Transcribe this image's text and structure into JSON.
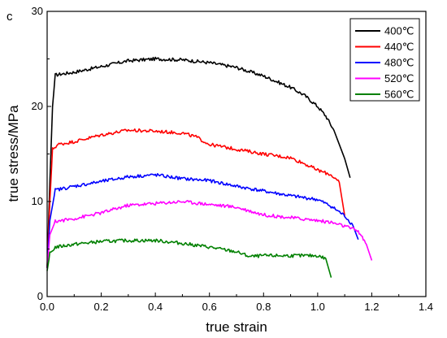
{
  "chart_data": {
    "type": "line",
    "panel_label": "c",
    "xlabel": "true strain",
    "ylabel": "true stress/MPa",
    "xlim": [
      0.0,
      1.4
    ],
    "ylim": [
      0,
      30
    ],
    "xticks": [
      "0.0",
      "0.2",
      "0.4",
      "0.6",
      "0.8",
      "1.0",
      "1.2",
      "1.4"
    ],
    "yticks": [
      "0",
      "10",
      "20",
      "30"
    ],
    "legend_position": "top-right",
    "grid": false,
    "series": [
      {
        "name": "400℃",
        "color": "#000000",
        "x": [
          0.0,
          0.01,
          0.02,
          0.03,
          0.05,
          0.1,
          0.2,
          0.3,
          0.4,
          0.5,
          0.6,
          0.7,
          0.8,
          0.9,
          0.95,
          1.0,
          1.03,
          1.06,
          1.08,
          1.1,
          1.12
        ],
        "y": [
          3.0,
          12.0,
          20.0,
          23.3,
          23.4,
          23.6,
          24.2,
          24.8,
          25.0,
          24.9,
          24.6,
          24.1,
          23.2,
          22.0,
          21.2,
          20.0,
          19.0,
          17.5,
          16.0,
          14.5,
          12.5
        ]
      },
      {
        "name": "440℃",
        "color": "#ff0000",
        "x": [
          0.0,
          0.01,
          0.02,
          0.04,
          0.1,
          0.2,
          0.3,
          0.4,
          0.5,
          0.55,
          0.6,
          0.7,
          0.8,
          0.9,
          0.95,
          1.0,
          1.05,
          1.08,
          1.1
        ],
        "y": [
          3.0,
          10.0,
          15.5,
          16.0,
          16.3,
          17.0,
          17.5,
          17.4,
          17.2,
          16.8,
          16.0,
          15.5,
          15.0,
          14.6,
          14.0,
          13.3,
          12.8,
          12.0,
          8.5
        ]
      },
      {
        "name": "480℃",
        "color": "#0000ff",
        "x": [
          0.0,
          0.01,
          0.03,
          0.1,
          0.2,
          0.3,
          0.4,
          0.5,
          0.6,
          0.7,
          0.8,
          0.9,
          1.0,
          1.05,
          1.1,
          1.13,
          1.15
        ],
        "y": [
          3.0,
          8.0,
          11.2,
          11.6,
          12.1,
          12.6,
          12.8,
          12.4,
          12.2,
          11.6,
          11.1,
          10.6,
          10.2,
          9.5,
          8.5,
          7.5,
          6.0
        ]
      },
      {
        "name": "520℃",
        "color": "#ff00ff",
        "x": [
          0.0,
          0.01,
          0.03,
          0.1,
          0.2,
          0.3,
          0.4,
          0.5,
          0.6,
          0.7,
          0.8,
          0.9,
          1.0,
          1.05,
          1.1,
          1.15,
          1.18,
          1.2
        ],
        "y": [
          3.0,
          6.5,
          7.9,
          8.2,
          8.8,
          9.6,
          9.8,
          10.0,
          9.7,
          9.4,
          8.6,
          8.3,
          8.0,
          7.8,
          7.4,
          6.9,
          5.5,
          3.8
        ]
      },
      {
        "name": "560℃",
        "color": "#008000",
        "x": [
          0.0,
          0.01,
          0.03,
          0.1,
          0.2,
          0.3,
          0.4,
          0.5,
          0.6,
          0.7,
          0.75,
          0.8,
          0.9,
          1.0,
          1.03,
          1.05
        ],
        "y": [
          2.7,
          4.5,
          5.2,
          5.5,
          5.8,
          5.9,
          5.9,
          5.6,
          5.2,
          4.7,
          4.2,
          4.3,
          4.3,
          4.3,
          4.0,
          2.0
        ]
      }
    ]
  }
}
